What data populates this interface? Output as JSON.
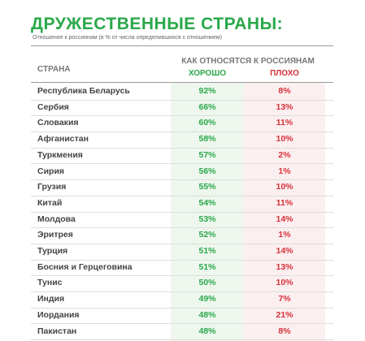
{
  "header": {
    "title": "ДРУЖЕСТВЕННЫЕ СТРАНЫ:",
    "subtitle": "Отношение к россиянам (в % от числа определившихся с отношением)"
  },
  "table": {
    "country_header": "СТРАНА",
    "group_header": "КАК ОТНОСЯТСЯ К РОССИЯНАМ",
    "good_header": "ХОРОШО",
    "bad_header": "ПЛОХО",
    "rows": [
      [
        "Республика Беларусь",
        "92%",
        "8%"
      ],
      [
        "Сербия",
        "66%",
        "13%"
      ],
      [
        "Словакия",
        "60%",
        "11%"
      ],
      [
        "Афганистан",
        "58%",
        "10%"
      ],
      [
        "Туркмения",
        "57%",
        "2%"
      ],
      [
        "Сирия",
        "56%",
        "1%"
      ],
      [
        "Грузия",
        "55%",
        "10%"
      ],
      [
        "Китай",
        "54%",
        "11%"
      ],
      [
        "Молдова",
        "53%",
        "14%"
      ],
      [
        "Эритрея",
        "52%",
        "1%"
      ],
      [
        "Турция",
        "51%",
        "14%"
      ],
      [
        "Босния и Герцеговина",
        "51%",
        "13%"
      ],
      [
        "Тунис",
        "50%",
        "10%"
      ],
      [
        "Индия",
        "49%",
        "7%"
      ],
      [
        "Иордания",
        "48%",
        "21%"
      ],
      [
        "Пакистан",
        "48%",
        "8%"
      ]
    ]
  }
}
